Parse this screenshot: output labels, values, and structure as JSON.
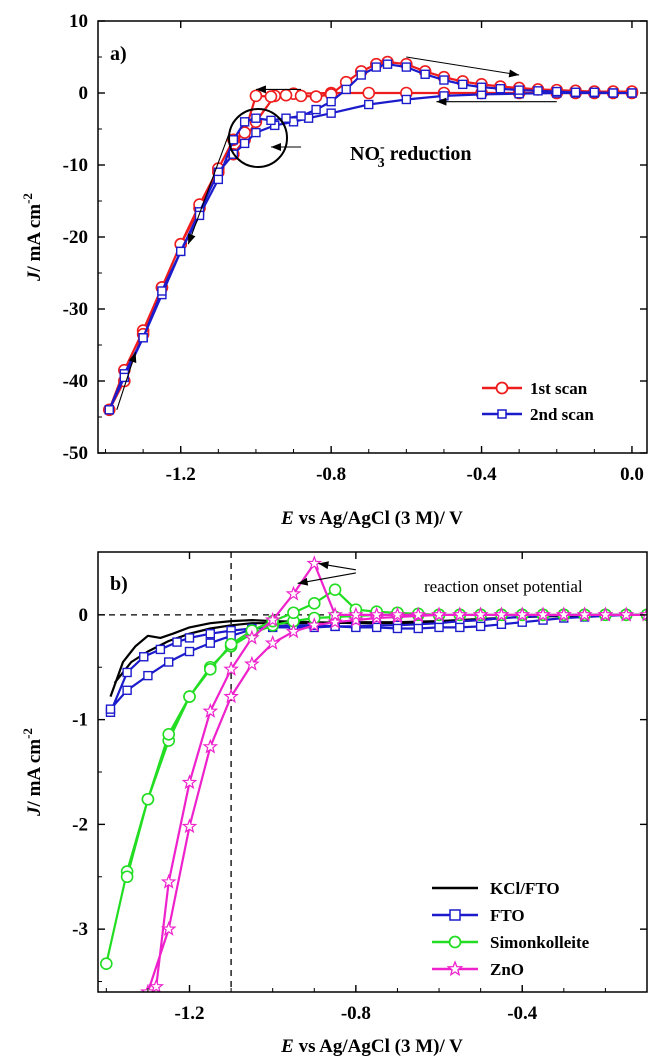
{
  "chart_data": [
    {
      "type": "line",
      "panel_label": "a)",
      "xlabel_italic": "E",
      "xlabel_rest": " vs Ag/AgCl (3 M)/ V",
      "ylabel_italic": "J",
      "ylabel_rest": "/ mA cm",
      "ylabel_sup": "-2",
      "xlim": [
        -1.42,
        0.04
      ],
      "ylim": [
        -50,
        10
      ],
      "x_ticks": [
        -1.2,
        -0.8,
        -0.4,
        0.0
      ],
      "x_tick_labels": [
        "-1.2",
        "-0.8",
        "-0.4",
        "0.0"
      ],
      "y_ticks": [
        10,
        0,
        -10,
        -20,
        -30,
        -40,
        -50
      ],
      "y_tick_labels": [
        "10",
        "0",
        "-10",
        "-20",
        "-30",
        "-40",
        "-50"
      ],
      "annotation": {
        "main": "NO",
        "sub": "3",
        "sup": "-",
        "rest": " reduction",
        "x": -1.01,
        "y": -6.5
      },
      "arrows": [
        {
          "from": [
            -1.37,
            -44
          ],
          "to": [
            -1.32,
            -36
          ]
        },
        {
          "from": [
            -1.06,
            -4
          ],
          "to": [
            -1.18,
            -21
          ]
        },
        {
          "from": [
            -0.88,
            0.5
          ],
          "to": [
            -1.0,
            0.5
          ]
        },
        {
          "from": [
            -0.6,
            5
          ],
          "to": [
            -0.3,
            2.5
          ]
        },
        {
          "from": [
            -0.2,
            -1.2
          ],
          "to": [
            -0.52,
            -1.2
          ]
        },
        {
          "from": [
            -0.88,
            -7.5
          ],
          "to": [
            -0.96,
            -7.5
          ]
        }
      ],
      "series": [
        {
          "name": "1st scan",
          "color": "#ee1c1c",
          "marker": "circle",
          "x": [
            0.0,
            -0.05,
            -0.1,
            -0.15,
            -0.2,
            -0.3,
            -0.4,
            -0.5,
            -0.6,
            -0.7,
            -0.8,
            -0.9,
            -0.95,
            -1.0,
            -1.03,
            -1.06,
            -1.1,
            -1.15,
            -1.2,
            -1.25,
            -1.3,
            -1.35,
            -1.39,
            -1.35,
            -1.3,
            -1.25,
            -1.2,
            -1.15,
            -1.1,
            -1.06,
            -1.03,
            -1.0,
            -0.96,
            -0.92,
            -0.88,
            -0.84,
            -0.8,
            -0.76,
            -0.72,
            -0.68,
            -0.65,
            -0.6,
            -0.55,
            -0.5,
            -0.45,
            -0.4,
            -0.35,
            -0.3,
            -0.25,
            -0.2,
            -0.15,
            -0.1,
            -0.05,
            0.0
          ],
          "y": [
            0.0,
            0.0,
            0.0,
            0.0,
            0.0,
            0.0,
            0.0,
            0.0,
            0.0,
            0.0,
            0.0,
            -0.1,
            -0.4,
            -4.0,
            -6.5,
            -8.5,
            -11.0,
            -16.0,
            -21.0,
            -27.0,
            -33.0,
            -38.5,
            -44.0,
            -40.0,
            -33.5,
            -27.0,
            -21.0,
            -15.5,
            -10.5,
            -6.5,
            -5.5,
            -0.4,
            -0.5,
            -0.3,
            -0.4,
            -0.5,
            -0.2,
            1.5,
            3.0,
            4.0,
            4.3,
            4.0,
            3.0,
            2.2,
            1.6,
            1.2,
            0.9,
            0.7,
            0.5,
            0.4,
            0.3,
            0.2,
            0.2,
            0.2
          ]
        },
        {
          "name": "2nd scan",
          "color": "#1b1bcc",
          "marker": "square",
          "x": [
            0.0,
            -0.05,
            -0.1,
            -0.15,
            -0.2,
            -0.3,
            -0.4,
            -0.5,
            -0.6,
            -0.7,
            -0.8,
            -0.86,
            -0.9,
            -0.95,
            -1.0,
            -1.03,
            -1.06,
            -1.1,
            -1.15,
            -1.2,
            -1.25,
            -1.3,
            -1.35,
            -1.39,
            -1.35,
            -1.3,
            -1.25,
            -1.2,
            -1.15,
            -1.1,
            -1.06,
            -1.03,
            -1.0,
            -0.96,
            -0.92,
            -0.88,
            -0.84,
            -0.8,
            -0.76,
            -0.72,
            -0.68,
            -0.65,
            -0.6,
            -0.55,
            -0.5,
            -0.45,
            -0.4,
            -0.35,
            -0.3,
            -0.25,
            -0.2,
            -0.15,
            -0.1,
            -0.05,
            0.0
          ],
          "y": [
            0.0,
            0.0,
            0.0,
            0.0,
            0.0,
            -0.1,
            -0.2,
            -0.4,
            -0.9,
            -1.6,
            -2.8,
            -3.5,
            -4.0,
            -4.5,
            -5.5,
            -7.0,
            -8.5,
            -11.0,
            -16.5,
            -22.0,
            -28.0,
            -34.0,
            -39.0,
            -44.0,
            -39.5,
            -34.0,
            -27.5,
            -22.0,
            -17.0,
            -12.0,
            -6.5,
            -4.0,
            -3.5,
            -3.8,
            -3.5,
            -3.2,
            -2.3,
            -1.2,
            0.5,
            2.5,
            3.6,
            4.0,
            3.6,
            2.6,
            1.8,
            1.2,
            0.8,
            0.6,
            0.4,
            0.3,
            0.2,
            0.1,
            0.1,
            0.0,
            0.0
          ]
        }
      ]
    },
    {
      "type": "line",
      "panel_label": "b)",
      "xlabel_italic": "E",
      "xlabel_rest": " vs Ag/AgCl (3 M)/ V",
      "ylabel_italic": "J",
      "ylabel_rest": "/ mA cm",
      "ylabel_sup": "-2",
      "xlim": [
        -1.42,
        -0.1
      ],
      "ylim": [
        -3.6,
        0.6
      ],
      "x_ticks": [
        -1.2,
        -0.8,
        -0.4
      ],
      "x_tick_labels": [
        "-1.2",
        "-0.8",
        "-0.4"
      ],
      "y_ticks": [
        0,
        -1,
        -2,
        -3
      ],
      "y_tick_labels": [
        "0",
        "-1",
        "-2",
        "-3"
      ],
      "vline_x": -1.1,
      "hline_y": 0,
      "annotation": {
        "text": "reaction onset potential",
        "x": -0.76,
        "y": 0.43
      },
      "arrows": [
        {
          "from": [
            -0.8,
            0.43
          ],
          "to": [
            -0.89,
            0.49
          ]
        },
        {
          "from": [
            -0.8,
            0.4
          ],
          "to": [
            -0.94,
            0.3
          ]
        }
      ],
      "series": [
        {
          "name": "KCl/FTO",
          "color": "#000000",
          "marker": "none",
          "x": [
            -1.39,
            -1.36,
            -1.33,
            -1.3,
            -1.27,
            -1.24,
            -1.2,
            -1.15,
            -1.1,
            -1.05,
            -1.0,
            -0.9,
            -0.8,
            -0.7,
            -0.6,
            -0.5,
            -0.45,
            -0.4,
            -0.3,
            -0.2,
            -0.1,
            -0.15,
            -0.2,
            -0.3,
            -0.4,
            -0.5,
            -0.6,
            -0.7,
            -0.8,
            -0.9,
            -1.0,
            -1.05,
            -1.1,
            -1.15,
            -1.2,
            -1.25,
            -1.3,
            -1.34,
            -1.38
          ],
          "y": [
            -0.78,
            -0.45,
            -0.3,
            -0.2,
            -0.22,
            -0.18,
            -0.12,
            -0.08,
            -0.06,
            -0.05,
            -0.06,
            -0.07,
            -0.08,
            -0.08,
            -0.07,
            -0.05,
            -0.03,
            -0.02,
            -0.01,
            0.0,
            0.0,
            0.0,
            0.0,
            -0.01,
            -0.02,
            -0.04,
            -0.06,
            -0.07,
            -0.07,
            -0.08,
            -0.08,
            -0.08,
            -0.1,
            -0.13,
            -0.18,
            -0.25,
            -0.35,
            -0.45,
            -0.65
          ]
        },
        {
          "name": "FTO",
          "color": "#1b1bcc",
          "marker": "square",
          "x": [
            -1.39,
            -1.35,
            -1.31,
            -1.27,
            -1.23,
            -1.2,
            -1.15,
            -1.1,
            -1.05,
            -1.0,
            -0.95,
            -0.9,
            -0.85,
            -0.8,
            -0.75,
            -0.7,
            -0.65,
            -0.6,
            -0.55,
            -0.5,
            -0.45,
            -0.4,
            -0.35,
            -0.3,
            -0.25,
            -0.2,
            -0.15,
            -0.1,
            -0.15,
            -0.2,
            -0.25,
            -0.3,
            -0.35,
            -0.4,
            -0.45,
            -0.5,
            -0.55,
            -0.6,
            -0.65,
            -0.7,
            -0.75,
            -0.8,
            -0.85,
            -0.9,
            -0.95,
            -1.0,
            -1.05,
            -1.1,
            -1.15,
            -1.2,
            -1.25,
            -1.3,
            -1.35,
            -1.39
          ],
          "y": [
            -0.93,
            -0.55,
            -0.4,
            -0.33,
            -0.26,
            -0.22,
            -0.18,
            -0.15,
            -0.13,
            -0.12,
            -0.12,
            -0.12,
            -0.11,
            -0.11,
            -0.1,
            -0.1,
            -0.09,
            -0.08,
            -0.06,
            -0.05,
            -0.03,
            -0.02,
            -0.01,
            0.0,
            0.0,
            0.0,
            0.0,
            0.0,
            0.0,
            -0.01,
            -0.02,
            -0.03,
            -0.05,
            -0.07,
            -0.09,
            -0.11,
            -0.12,
            -0.12,
            -0.13,
            -0.13,
            -0.12,
            -0.12,
            -0.11,
            -0.1,
            -0.1,
            -0.11,
            -0.14,
            -0.2,
            -0.27,
            -0.35,
            -0.45,
            -0.58,
            -0.72,
            -0.9
          ]
        },
        {
          "name": "Simonkolleite",
          "color": "#22dd22",
          "marker": "circle",
          "x": [
            -1.4,
            -1.35,
            -1.3,
            -1.25,
            -1.2,
            -1.15,
            -1.1,
            -1.05,
            -1.0,
            -0.95,
            -0.9,
            -0.85,
            -0.8,
            -0.75,
            -0.7,
            -0.65,
            -0.6,
            -0.55,
            -0.5,
            -0.45,
            -0.4,
            -0.35,
            -0.3,
            -0.25,
            -0.2,
            -0.15,
            -0.1,
            -0.15,
            -0.2,
            -0.25,
            -0.3,
            -0.35,
            -0.4,
            -0.45,
            -0.5,
            -0.55,
            -0.6,
            -0.65,
            -0.7,
            -0.75,
            -0.8,
            -0.85,
            -0.9,
            -0.95,
            -1.0,
            -1.05,
            -1.1,
            -1.15,
            -1.2,
            -1.25,
            -1.3,
            -1.35
          ],
          "y": [
            -3.33,
            -2.45,
            -1.76,
            -1.2,
            -0.78,
            -0.5,
            -0.3,
            -0.18,
            -0.1,
            -0.06,
            -0.03,
            -0.02,
            -0.01,
            0.0,
            0.0,
            0.0,
            0.0,
            0.0,
            0.0,
            0.0,
            0.0,
            0.0,
            0.0,
            0.0,
            0.0,
            0.0,
            0.0,
            0.0,
            0.0,
            0.0,
            0.0,
            0.0,
            0.0,
            0.0,
            0.0,
            0.0,
            0.0,
            0.01,
            0.02,
            0.03,
            0.05,
            0.24,
            0.11,
            0.02,
            -0.06,
            -0.15,
            -0.28,
            -0.52,
            -0.78,
            -1.14,
            -1.76,
            -2.5
          ]
        },
        {
          "name": "ZnO",
          "color": "#ee22cc",
          "marker": "star",
          "x": [
            -1.3,
            -1.25,
            -1.2,
            -1.15,
            -1.1,
            -1.05,
            -1.0,
            -0.95,
            -0.9,
            -0.85,
            -0.8,
            -0.75,
            -0.7,
            -0.65,
            -0.6,
            -0.55,
            -0.5,
            -0.45,
            -0.4,
            -0.35,
            -0.3,
            -0.25,
            -0.2,
            -0.15,
            -0.1,
            -0.15,
            -0.2,
            -0.25,
            -0.3,
            -0.35,
            -0.4,
            -0.45,
            -0.5,
            -0.55,
            -0.6,
            -0.65,
            -0.7,
            -0.75,
            -0.8,
            -0.85,
            -0.9,
            -0.95,
            -1.0,
            -1.05,
            -1.1,
            -1.15,
            -1.2,
            -1.25,
            -1.28
          ],
          "y": [
            -3.6,
            -3.0,
            -2.02,
            -1.26,
            -0.78,
            -0.47,
            -0.27,
            -0.16,
            -0.1,
            -0.07,
            -0.05,
            -0.03,
            -0.02,
            -0.01,
            0.0,
            0.0,
            0.0,
            0.0,
            0.0,
            0.0,
            0.0,
            0.0,
            0.0,
            0.0,
            0.0,
            0.0,
            0.0,
            0.0,
            0.0,
            0.0,
            0.0,
            0.0,
            0.0,
            0.0,
            0.0,
            0.0,
            0.0,
            0.0,
            0.0,
            0.0,
            0.49,
            0.2,
            -0.05,
            -0.22,
            -0.52,
            -0.92,
            -1.6,
            -2.55,
            -3.55
          ]
        }
      ]
    }
  ]
}
